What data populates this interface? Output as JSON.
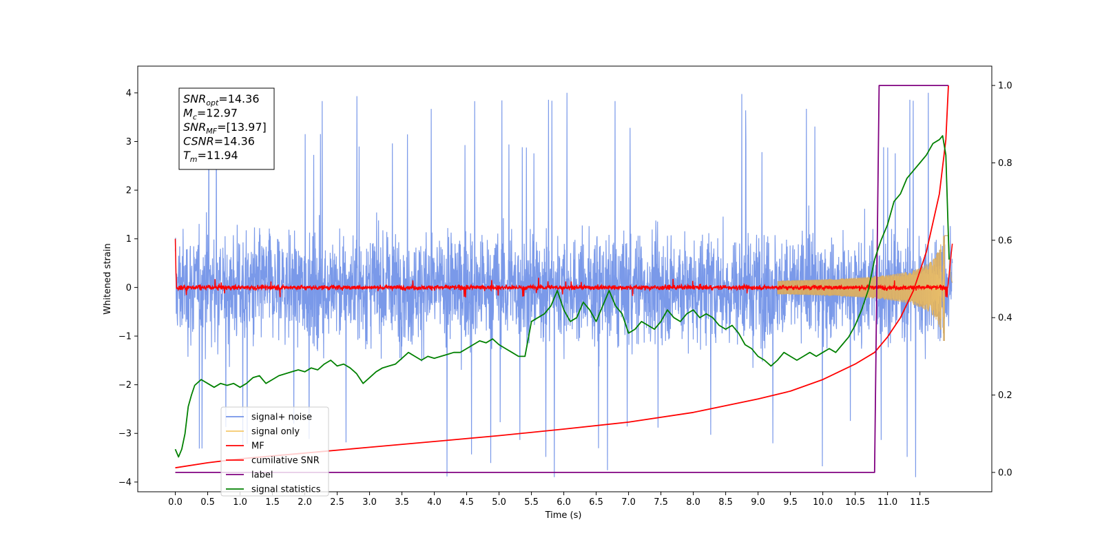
{
  "chart_data": {
    "type": "line",
    "xlabel": "Time (s)",
    "ylabel_left": "Whitened strain",
    "xlim": [
      -0.58,
      12.61
    ],
    "ylim_left": [
      -4.2,
      4.55
    ],
    "ylim_right": [
      -0.05,
      1.05
    ],
    "x_ticks": [
      "0.0",
      "0.5",
      "1.0",
      "1.5",
      "2.0",
      "2.5",
      "3.0",
      "3.5",
      "4.0",
      "4.5",
      "5.0",
      "5.5",
      "6.0",
      "6.5",
      "7.0",
      "7.5",
      "8.0",
      "8.5",
      "9.0",
      "9.5",
      "10.0",
      "10.5",
      "11.0",
      "11.5"
    ],
    "y_ticks_left": [
      "−4",
      "−3",
      "−2",
      "−1",
      "0",
      "1",
      "2",
      "3",
      "4"
    ],
    "y_ticks_right": [
      "0.0",
      "0.2",
      "0.4",
      "0.6",
      "0.8",
      "1.0"
    ],
    "grid": false,
    "legend_position": "lower-left",
    "annotation": [
      {
        "base": "SNR",
        "sub": "opt",
        "value": "=14.36"
      },
      {
        "base": "M",
        "sub": "c",
        "value": "=12.97"
      },
      {
        "base": "SNR",
        "sub": "MF",
        "value": "=[13.97]"
      },
      {
        "base": "CSNR",
        "sub": "",
        "value": "=14.36"
      },
      {
        "base": "T",
        "sub": "m",
        "value": "=11.94"
      }
    ],
    "series": [
      {
        "name": "signal+ noise",
        "color": "#7393e8",
        "axis": "left",
        "style": "noise band, approx ±1.7 typical, spikes to ±4.2"
      },
      {
        "name": "signal only",
        "color": "#f5c869",
        "axis": "left",
        "style": "chirp envelope growing to ±1.1 near 11.94 s"
      },
      {
        "name": "MF",
        "color": "#ff0000",
        "axis": "left",
        "style": "near 0 with small noise, spike to 1.0 at t=0"
      },
      {
        "name": "cumilative SNR",
        "color": "#ff0000",
        "axis": "right",
        "x": [
          0.0,
          0.5,
          1.0,
          2.0,
          3.0,
          4.0,
          5.0,
          6.0,
          7.0,
          8.0,
          9.0,
          9.5,
          10.0,
          10.5,
          10.8,
          11.0,
          11.2,
          11.4,
          11.6,
          11.8,
          11.9,
          11.94
        ],
        "values": [
          0.012,
          0.025,
          0.035,
          0.05,
          0.065,
          0.08,
          0.095,
          0.112,
          0.13,
          0.155,
          0.19,
          0.21,
          0.24,
          0.28,
          0.31,
          0.35,
          0.4,
          0.47,
          0.57,
          0.72,
          0.86,
          1.0
        ]
      },
      {
        "name": "label",
        "color": "#800080",
        "axis": "right",
        "x": [
          0.0,
          10.8,
          10.87,
          11.94
        ],
        "values": [
          0.0,
          0.0,
          1.0,
          1.0
        ]
      },
      {
        "name": "signal statistics",
        "color": "#008000",
        "axis": "right",
        "x": [
          0.0,
          0.05,
          0.1,
          0.15,
          0.2,
          0.25,
          0.3,
          0.4,
          0.5,
          0.6,
          0.7,
          0.8,
          0.9,
          1.0,
          1.1,
          1.2,
          1.3,
          1.4,
          1.5,
          1.6,
          1.7,
          1.8,
          1.9,
          2.0,
          2.1,
          2.2,
          2.3,
          2.4,
          2.5,
          2.6,
          2.7,
          2.8,
          2.9,
          3.0,
          3.1,
          3.2,
          3.3,
          3.4,
          3.5,
          3.6,
          3.7,
          3.8,
          3.9,
          4.0,
          4.1,
          4.2,
          4.3,
          4.4,
          4.5,
          4.6,
          4.7,
          4.8,
          4.9,
          5.0,
          5.1,
          5.2,
          5.3,
          5.4,
          5.5,
          5.6,
          5.7,
          5.8,
          5.9,
          6.0,
          6.1,
          6.2,
          6.3,
          6.4,
          6.5,
          6.6,
          6.7,
          6.75,
          6.8,
          6.9,
          7.0,
          7.1,
          7.2,
          7.3,
          7.4,
          7.5,
          7.6,
          7.7,
          7.8,
          7.9,
          8.0,
          8.1,
          8.2,
          8.3,
          8.4,
          8.5,
          8.6,
          8.7,
          8.8,
          8.9,
          9.0,
          9.1,
          9.2,
          9.3,
          9.4,
          9.5,
          9.6,
          9.7,
          9.8,
          9.9,
          10.0,
          10.1,
          10.2,
          10.3,
          10.4,
          10.5,
          10.6,
          10.7,
          10.8,
          10.9,
          11.0,
          11.1,
          11.2,
          11.3,
          11.4,
          11.5,
          11.6,
          11.7,
          11.8,
          11.85,
          11.9,
          11.95
        ],
        "values": [
          0.06,
          0.04,
          0.06,
          0.1,
          0.17,
          0.2,
          0.225,
          0.24,
          0.23,
          0.22,
          0.23,
          0.225,
          0.23,
          0.22,
          0.23,
          0.245,
          0.25,
          0.23,
          0.24,
          0.25,
          0.255,
          0.26,
          0.265,
          0.26,
          0.27,
          0.265,
          0.28,
          0.29,
          0.275,
          0.28,
          0.27,
          0.255,
          0.23,
          0.245,
          0.26,
          0.27,
          0.275,
          0.28,
          0.295,
          0.31,
          0.3,
          0.29,
          0.3,
          0.295,
          0.3,
          0.305,
          0.31,
          0.31,
          0.32,
          0.33,
          0.34,
          0.335,
          0.345,
          0.33,
          0.32,
          0.31,
          0.3,
          0.3,
          0.39,
          0.4,
          0.41,
          0.43,
          0.47,
          0.42,
          0.39,
          0.4,
          0.44,
          0.42,
          0.39,
          0.43,
          0.47,
          0.45,
          0.43,
          0.41,
          0.36,
          0.37,
          0.39,
          0.38,
          0.37,
          0.39,
          0.42,
          0.4,
          0.39,
          0.41,
          0.42,
          0.4,
          0.41,
          0.4,
          0.38,
          0.37,
          0.38,
          0.36,
          0.33,
          0.32,
          0.3,
          0.29,
          0.275,
          0.29,
          0.31,
          0.3,
          0.29,
          0.3,
          0.31,
          0.3,
          0.31,
          0.32,
          0.31,
          0.33,
          0.35,
          0.38,
          0.42,
          0.47,
          0.55,
          0.6,
          0.64,
          0.7,
          0.72,
          0.76,
          0.78,
          0.8,
          0.82,
          0.85,
          0.86,
          0.87,
          0.82,
          0.55
        ]
      }
    ]
  }
}
